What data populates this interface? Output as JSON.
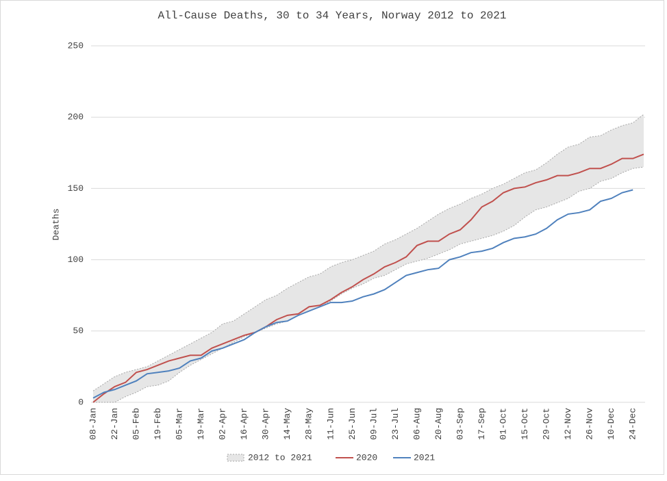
{
  "chart_data": {
    "type": "line",
    "title": "All-Cause Deaths, 30 to 34 Years, Norway 2012 to 2021",
    "y_label": "Deaths",
    "categories": [
      "08-Jan",
      null,
      "22-Jan",
      null,
      "05-Feb",
      null,
      "19-Feb",
      null,
      "05-Mar",
      null,
      "19-Mar",
      null,
      "02-Apr",
      null,
      "16-Apr",
      null,
      "30-Apr",
      null,
      "14-May",
      null,
      "28-May",
      null,
      "11-Jun",
      null,
      "25-Jun",
      null,
      "09-Jul",
      null,
      "23-Jul",
      null,
      "06-Aug",
      null,
      "20-Aug",
      null,
      "03-Sep",
      null,
      "17-Sep",
      null,
      "01-Oct",
      null,
      "15-Oct",
      null,
      "29-Oct",
      null,
      "12-Nov",
      null,
      "26-Nov",
      null,
      "10-Dec",
      null,
      "24-Dec",
      null
    ],
    "series": [
      {
        "name": "2012 to 2021",
        "type": "band",
        "color": "#e6e6e6",
        "upper": [
          8,
          13,
          18,
          21,
          23,
          25,
          29,
          33,
          37,
          41,
          45,
          49,
          55,
          57,
          62,
          67,
          72,
          75,
          80,
          84,
          88,
          90,
          95,
          98,
          100,
          103,
          106,
          111,
          114,
          118,
          122,
          127,
          132,
          136,
          139,
          143,
          146,
          150,
          153,
          157,
          161,
          163,
          168,
          174,
          179,
          181,
          186,
          187,
          191,
          194,
          196,
          202
        ],
        "lower": [
          0,
          0,
          0,
          4,
          7,
          11,
          12,
          15,
          21,
          26,
          30,
          34,
          38,
          42,
          46,
          49,
          52,
          55,
          57,
          61,
          64,
          67,
          71,
          76,
          80,
          83,
          87,
          89,
          93,
          97,
          99,
          101,
          104,
          107,
          111,
          113,
          115,
          117,
          120,
          124,
          130,
          135,
          137,
          140,
          143,
          148,
          150,
          155,
          157,
          161,
          164,
          165
        ]
      },
      {
        "name": "2020",
        "color": "#c0504d",
        "values": [
          0,
          6,
          11,
          14,
          21,
          23,
          26,
          29,
          31,
          33,
          33,
          38,
          41,
          44,
          47,
          49,
          53,
          58,
          61,
          62,
          67,
          68,
          72,
          77,
          81,
          86,
          90,
          95,
          98,
          102,
          110,
          113,
          113,
          118,
          121,
          128,
          137,
          141,
          147,
          150,
          151,
          154,
          156,
          159,
          159,
          161,
          164,
          164,
          167,
          171,
          171,
          174
        ]
      },
      {
        "name": "2021",
        "color": "#4f81bd",
        "values": [
          3,
          7,
          9,
          12,
          15,
          20,
          21,
          22,
          24,
          29,
          31,
          36,
          38,
          41,
          44,
          49,
          53,
          56,
          57,
          61,
          64,
          67,
          70,
          70,
          71,
          74,
          76,
          79,
          84,
          89,
          91,
          93,
          94,
          100,
          102,
          105,
          106,
          108,
          112,
          115,
          116,
          118,
          122,
          128,
          132,
          133,
          135,
          141,
          143,
          147,
          149,
          null
        ]
      }
    ],
    "ylim": [
      0,
      250
    ],
    "yticks": [
      0,
      50,
      100,
      150,
      200,
      250
    ],
    "grid": true,
    "legend": "bottom"
  }
}
